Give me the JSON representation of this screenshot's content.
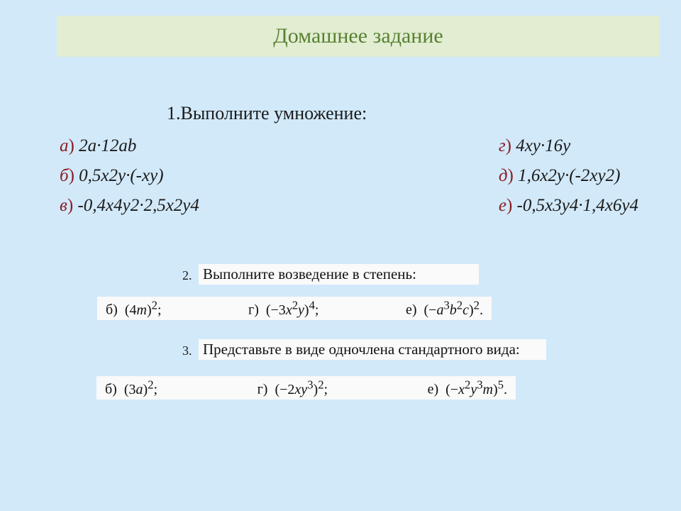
{
  "colors": {
    "page_bg": "#d2e9f9",
    "header_bg": "#e2edd2",
    "header_text": "#588131",
    "body_text": "#1a1a1a",
    "letter_text": "#8a1d23",
    "snippet_bg": "#fafafa"
  },
  "typography": {
    "header_fontsize": 30,
    "instruction_fontsize": 26,
    "problem_fontsize": 25,
    "tasknum_fontsize": 18,
    "snippet_fontsize": 21,
    "font_family": "Times New Roman"
  },
  "header": {
    "title": "Домашнее задание"
  },
  "task1": {
    "instruction": "1.Выполните умножение:",
    "left": [
      {
        "letter": "а",
        "expr": "2a·12ab"
      },
      {
        "letter": "б",
        "expr": "0,5x2y·(-xy)"
      },
      {
        "letter": "в",
        "expr": "-0,4x4y2·2,5x2y4"
      }
    ],
    "right": [
      {
        "letter": "г",
        "expr": "4xy·16y"
      },
      {
        "letter": "д",
        "expr": "1,6x2y·(-2xy2)"
      },
      {
        "letter": "е",
        "expr": "-0,5x3y4·1,4x6y4"
      }
    ]
  },
  "task2": {
    "num": "2.",
    "title": "Выполните возведение в степень:",
    "items": [
      {
        "letter": "б)",
        "expr_html": "(4<i>m</i>)<sup>2</sup>;"
      },
      {
        "letter": "г)",
        "expr_html": "(−3<i>x</i><sup>2</sup><i>y</i>)<sup>4</sup>;"
      },
      {
        "letter": "е)",
        "expr_html": "(−<i>a</i><sup>3</sup><i>b</i><sup>2</sup><i>c</i>)<sup>2</sup>."
      }
    ]
  },
  "task3": {
    "num": "3.",
    "title": "Представьте в виде одночлена стандартного вида:",
    "items": [
      {
        "letter": "б)",
        "expr_html": "(3<i>a</i>)<sup>2</sup>;"
      },
      {
        "letter": "г)",
        "expr_html": "(−2<i>xy</i><sup>3</sup>)<sup>2</sup>;"
      },
      {
        "letter": "е)",
        "expr_html": "(−<i>x</i><sup>2</sup><i>y</i><sup>3</sup><i>m</i>)<sup>5</sup>."
      }
    ]
  }
}
